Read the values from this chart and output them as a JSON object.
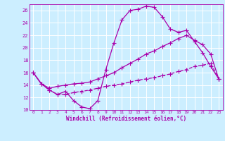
{
  "xlabel": "Windchill (Refroidissement éolien,°C)",
  "bg_color": "#cceeff",
  "line_color": "#aa00aa",
  "grid_color": "#ffffff",
  "xmin": -0.5,
  "xmax": 23.5,
  "ymin": 10,
  "ymax": 27,
  "yticks": [
    10,
    12,
    14,
    16,
    18,
    20,
    22,
    24,
    26
  ],
  "xticks": [
    0,
    1,
    2,
    3,
    4,
    5,
    6,
    7,
    8,
    9,
    10,
    11,
    12,
    13,
    14,
    15,
    16,
    17,
    18,
    19,
    20,
    21,
    22,
    23
  ],
  "line1_x": [
    0,
    1,
    2,
    3,
    4,
    5,
    6,
    7,
    8,
    9,
    10,
    11,
    12,
    13,
    14,
    15,
    16,
    17,
    18,
    19,
    20,
    21,
    22,
    23
  ],
  "line1_y": [
    16.0,
    14.2,
    13.2,
    12.5,
    13.0,
    11.5,
    10.5,
    10.2,
    11.5,
    16.5,
    20.8,
    24.5,
    26.0,
    26.2,
    26.7,
    26.5,
    25.0,
    23.0,
    22.5,
    22.8,
    21.0,
    19.2,
    17.0,
    15.0
  ],
  "line2_x": [
    0,
    1,
    2,
    3,
    4,
    5,
    6,
    7,
    8,
    9,
    10,
    11,
    12,
    13,
    14,
    15,
    16,
    17,
    18,
    19,
    20,
    21,
    22,
    23
  ],
  "line2_y": [
    16.0,
    14.2,
    13.5,
    13.8,
    14.0,
    14.2,
    14.3,
    14.5,
    15.0,
    15.5,
    16.0,
    16.8,
    17.5,
    18.2,
    19.0,
    19.5,
    20.2,
    20.8,
    21.5,
    22.0,
    21.2,
    20.5,
    19.0,
    15.0
  ],
  "line3_x": [
    0,
    1,
    2,
    3,
    4,
    5,
    6,
    7,
    8,
    9,
    10,
    11,
    12,
    13,
    14,
    15,
    16,
    17,
    18,
    19,
    20,
    21,
    22,
    23
  ],
  "line3_y": [
    16.0,
    14.2,
    13.2,
    12.5,
    12.5,
    12.8,
    13.0,
    13.2,
    13.5,
    13.8,
    14.0,
    14.2,
    14.5,
    14.8,
    15.0,
    15.2,
    15.5,
    15.8,
    16.2,
    16.5,
    17.0,
    17.2,
    17.5,
    15.0
  ],
  "marker_size": 3,
  "lw": 0.9
}
